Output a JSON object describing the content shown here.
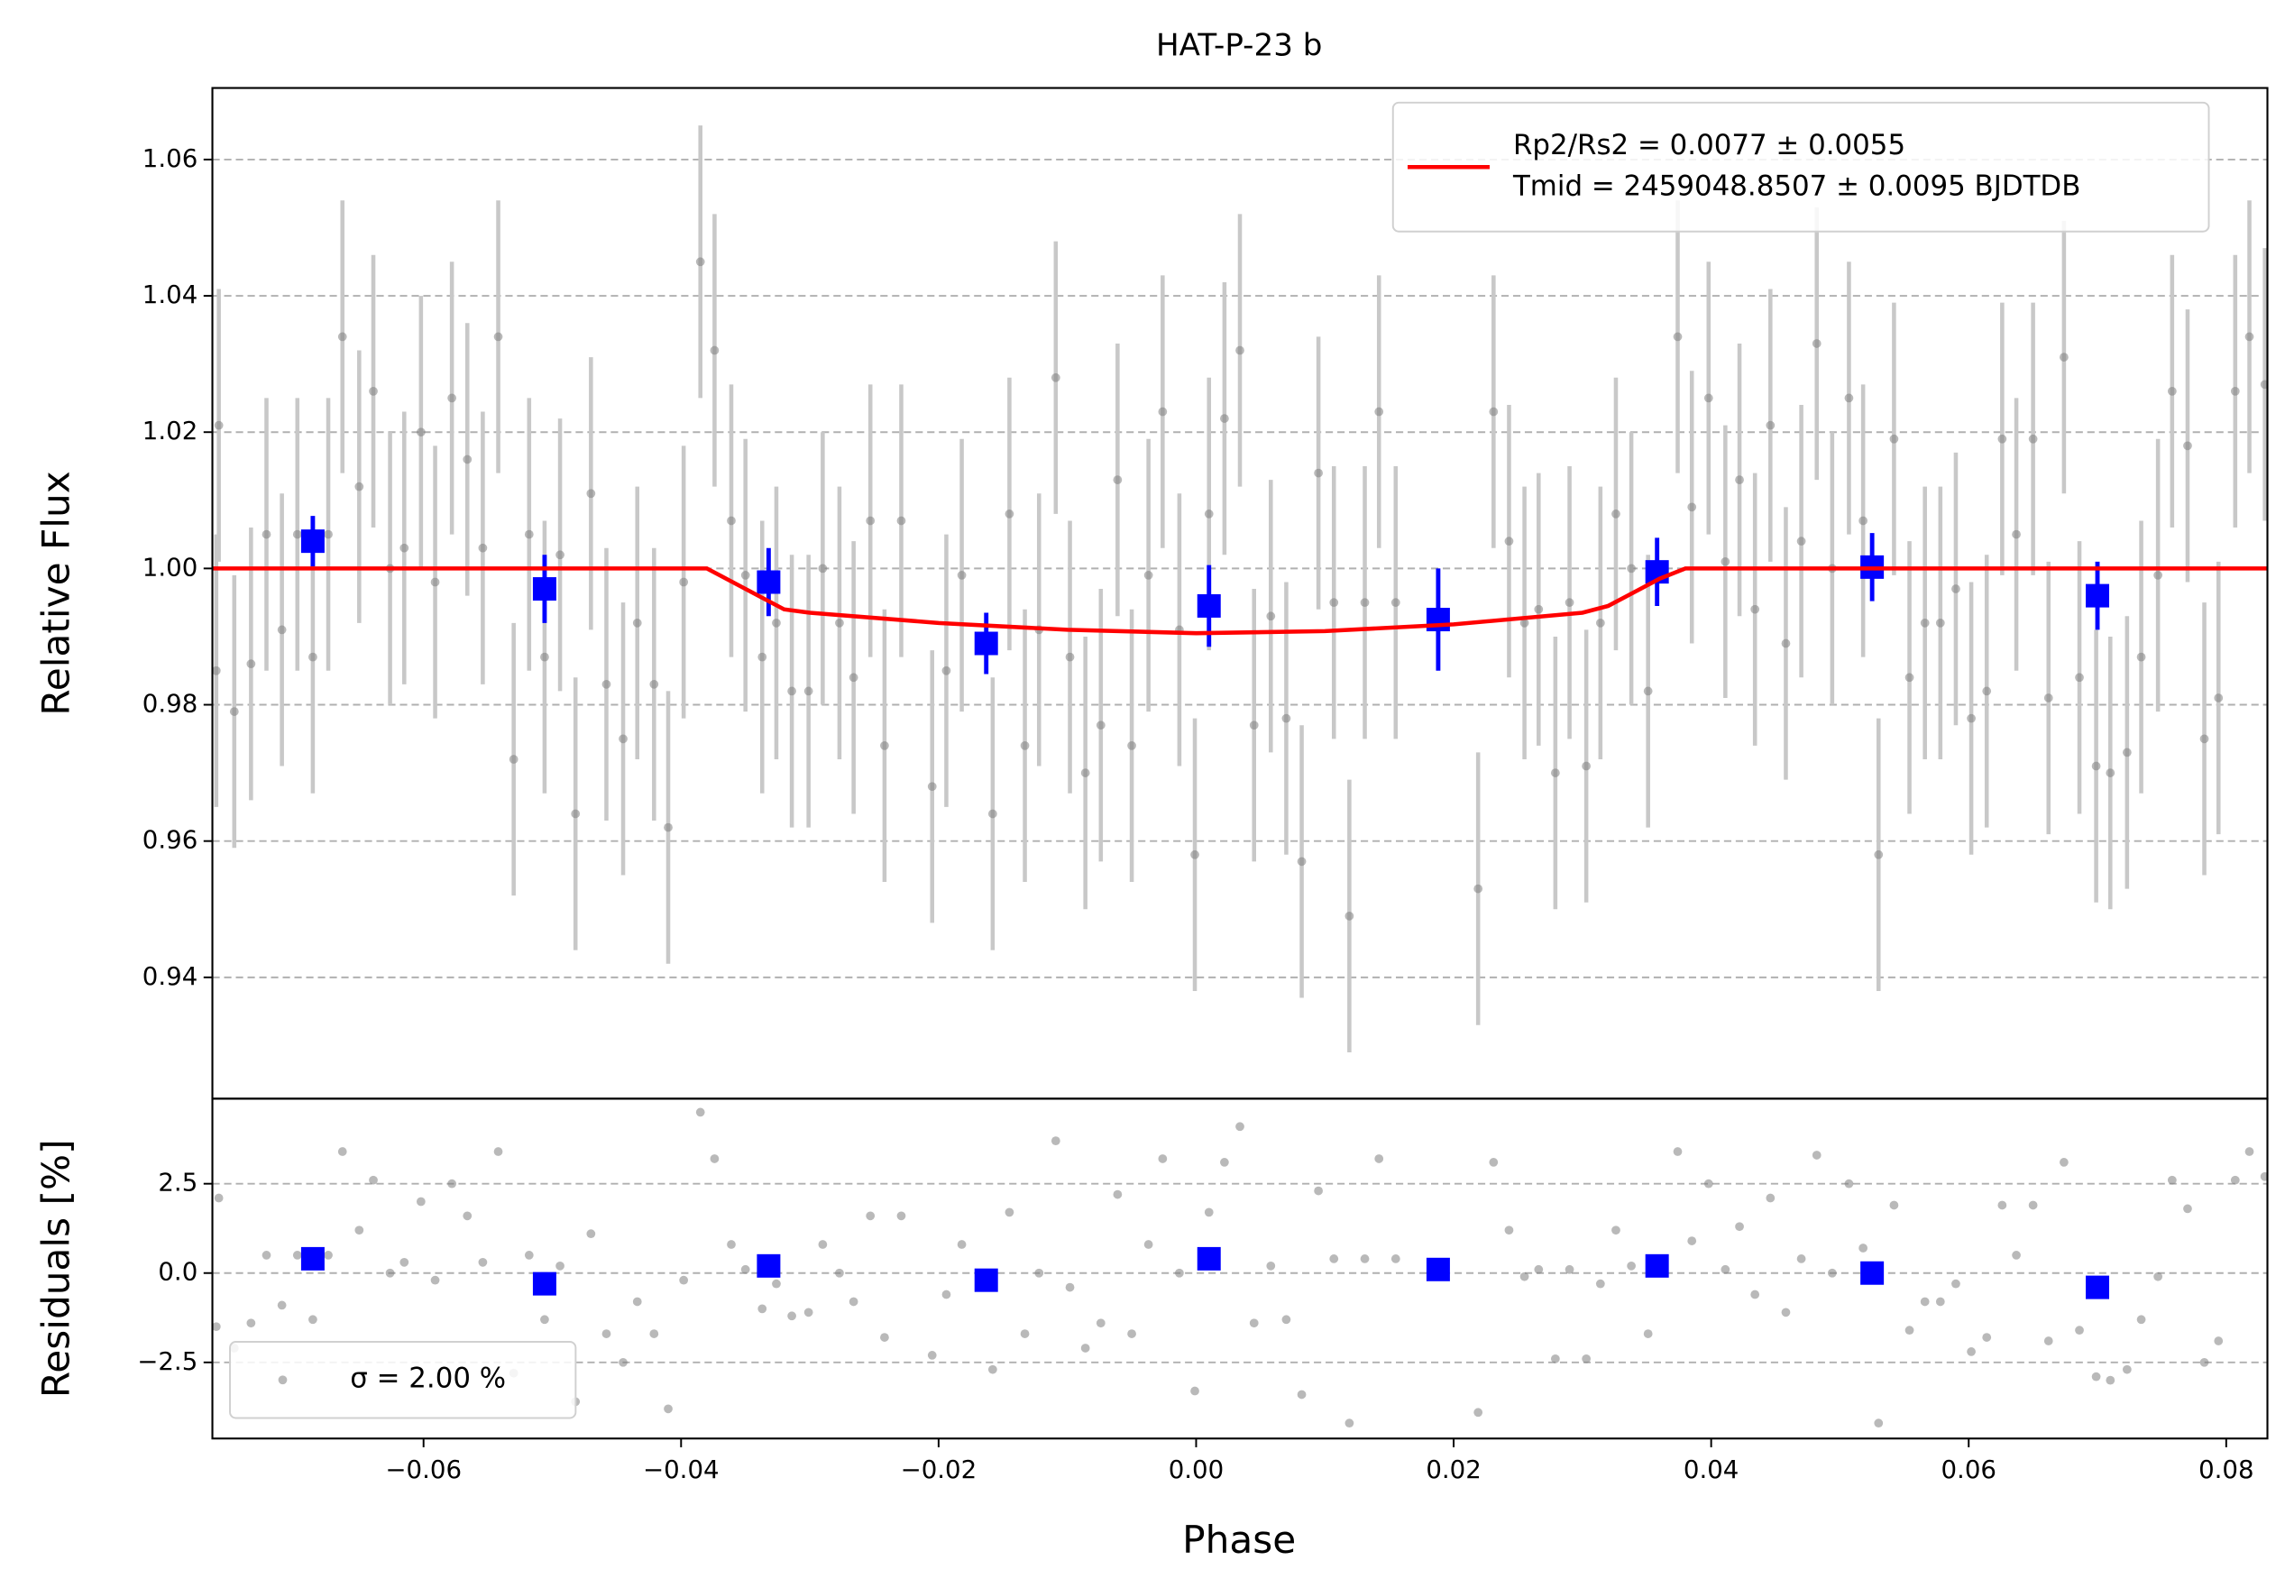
{
  "chart_data": [
    {
      "type": "scatter",
      "title": "HAT-P-23 b",
      "ylabel": "Relative Flux",
      "xlim": [
        -0.0764,
        0.0832
      ],
      "ylim": [
        0.9222,
        1.0705
      ],
      "yticks": [
        0.94,
        0.96,
        0.98,
        {
          "value": 1.0,
          "label": "1.00"
        },
        1.02,
        1.04,
        1.06
      ],
      "grid": true,
      "legend": {
        "loc": "upper right",
        "labels": [
          "Rp2/Rs2 = 0.0077 ± 0.0055",
          "Tmid = 2459048.8507 ± 0.0095 BJDTDB"
        ]
      },
      "series": [
        {
          "style": "errorbar",
          "color": "#808080",
          "error_color": "#c8c8c8",
          "error": 0.02,
          "x": [
            -0.0761,
            -0.0759,
            -0.0747,
            -0.0734,
            -0.0722,
            -0.071,
            -0.0698,
            -0.0686,
            -0.0674,
            -0.0663,
            -0.065,
            -0.0639,
            -0.0626,
            -0.0615,
            -0.0602,
            -0.0591,
            -0.0578,
            -0.0566,
            -0.0554,
            -0.0542,
            -0.053,
            -0.0518,
            -0.0506,
            -0.0494,
            -0.0482,
            -0.047,
            -0.0458,
            -0.0445,
            -0.0434,
            -0.0421,
            -0.041,
            -0.0398,
            -0.0385,
            -0.0374,
            -0.0361,
            -0.035,
            -0.0337,
            -0.0326,
            -0.0314,
            -0.0301,
            -0.029,
            -0.0277,
            -0.0266,
            -0.0253,
            -0.0242,
            -0.0229,
            -0.0205,
            -0.0194,
            -0.0182,
            -0.0158,
            -0.0145,
            -0.0133,
            -0.0122,
            -0.0109,
            -0.0098,
            -0.0086,
            -0.0074,
            -0.0061,
            -0.005,
            -0.0037,
            -0.0026,
            -0.0013,
            -0.0001,
            0.001,
            0.0022,
            0.0034,
            0.0045,
            0.0058,
            0.007,
            0.0082,
            0.0095,
            0.0107,
            0.0119,
            0.0131,
            0.0142,
            0.0155,
            0.0219,
            0.0231,
            0.0243,
            0.0255,
            0.0266,
            0.0279,
            0.029,
            0.0303,
            0.0314,
            0.0326,
            0.0338,
            0.0351,
            0.0374,
            0.0385,
            0.0398,
            0.0411,
            0.0422,
            0.0434,
            0.0446,
            0.0458,
            0.047,
            0.0482,
            0.0494,
            0.0507,
            0.0518,
            0.053,
            0.0542,
            0.0554,
            0.0566,
            0.0578,
            0.059,
            0.0602,
            0.0614,
            0.0626,
            0.0637,
            0.065,
            0.0662,
            0.0674,
            0.0686,
            0.0699,
            0.071,
            0.0723,
            0.0734,
            0.0747,
            0.0758,
            0.077,
            0.0783,
            0.0794,
            0.0807,
            0.0818,
            0.083
          ],
          "values": [
            0.985,
            1.021,
            0.979,
            0.986,
            1.005,
            0.991,
            1.005,
            0.987,
            1.005,
            1.034,
            1.012,
            1.026,
            1.0,
            1.003,
            1.02,
            0.998,
            1.025,
            1.016,
            1.003,
            1.034,
            0.972,
            1.005,
            0.987,
            1.002,
            0.964,
            1.011,
            0.983,
            0.975,
            0.992,
            0.983,
            0.962,
            0.998,
            1.045,
            1.032,
            1.007,
            0.999,
            0.987,
            0.992,
            0.982,
            0.982,
            1.0,
            0.992,
            0.984,
            1.007,
            0.974,
            1.007,
            0.968,
            0.985,
            0.999,
            0.964,
            1.008,
            0.974,
            0.991,
            1.028,
            0.987,
            0.97,
            0.977,
            1.013,
            0.974,
            0.999,
            1.023,
            0.991,
            0.958,
            1.008,
            1.022,
            1.032,
            0.977,
            0.993,
            0.978,
            0.957,
            1.014,
            0.995,
            0.949,
            0.995,
            1.023,
            0.995,
            0.953,
            1.023,
            1.004,
            0.992,
            0.994,
            0.97,
            0.995,
            0.971,
            0.992,
            1.008,
            1.0,
            0.982,
            1.034,
            1.009,
            1.025,
            1.001,
            1.013,
            0.994,
            1.021,
            0.989,
            1.004,
            1.033,
            1.0,
            1.025,
            1.007,
            0.958,
            1.019,
            0.984,
            0.992,
            0.992,
            0.997,
            0.978,
            0.982,
            1.019,
            1.005,
            1.019,
            0.981,
            1.031,
            0.984,
            0.971,
            0.97,
            0.973,
            0.987,
            0.999,
            1.026,
            1.018,
            0.975,
            0.981,
            1.026,
            1.034,
            1.027
          ]
        },
        {
          "style": "errorbar",
          "color": "#0000ff",
          "marker": "square",
          "x": [
            -0.0686,
            -0.0506,
            -0.0332,
            -0.0163,
            0.001,
            0.0188,
            0.0358,
            0.0525,
            0.07
          ],
          "values": [
            1.004,
            0.997,
            0.998,
            0.989,
            0.9945,
            0.9925,
            0.9995,
            1.0002,
            0.996
          ],
          "errors": [
            0.0037,
            0.005,
            0.005,
            0.0045,
            0.006,
            0.0075,
            0.005,
            0.005,
            0.005
          ]
        },
        {
          "style": "line",
          "color": "#ff0000",
          "x": [
            -0.0764,
            -0.038,
            -0.036,
            -0.034,
            -0.032,
            -0.03,
            -0.02,
            -0.01,
            0.0,
            0.01,
            0.02,
            0.03,
            0.032,
            0.034,
            0.036,
            0.038,
            0.0832
          ],
          "values": [
            1.0,
            1.0,
            0.998,
            0.996,
            0.994,
            0.9935,
            0.992,
            0.991,
            0.9905,
            0.9908,
            0.9918,
            0.9935,
            0.9945,
            0.9965,
            0.9985,
            1.0,
            1.0
          ]
        }
      ]
    },
    {
      "type": "scatter",
      "xlabel": "Phase",
      "ylabel": "Residuals [%]",
      "xlim": [
        -0.0764,
        0.0832
      ],
      "ylim": [
        -4.63,
        4.88
      ],
      "xticks": [
        {
          "value": -0.06,
          "label": "−0.06"
        },
        {
          "value": -0.04,
          "label": "−0.04"
        },
        {
          "value": -0.02,
          "label": "−0.02"
        },
        {
          "value": 0,
          "label": "0.00"
        },
        0.02,
        0.04,
        0.06,
        0.08
      ],
      "yticks": [
        {
          "value": -2.5,
          "label": "−2.5"
        },
        {
          "value": 0,
          "label": "0.0"
        },
        2.5
      ],
      "grid": true,
      "legend": {
        "loc": "lower left",
        "labels": [
          "σ = 2.00 %"
        ]
      },
      "series": [
        {
          "style": "points",
          "color": "#808080",
          "x": [
            -0.0761,
            -0.0759,
            -0.0747,
            -0.0734,
            -0.0722,
            -0.071,
            -0.0698,
            -0.0686,
            -0.0674,
            -0.0663,
            -0.065,
            -0.0639,
            -0.0626,
            -0.0615,
            -0.0602,
            -0.0591,
            -0.0578,
            -0.0566,
            -0.0554,
            -0.0542,
            -0.053,
            -0.0518,
            -0.0506,
            -0.0494,
            -0.0482,
            -0.047,
            -0.0458,
            -0.0445,
            -0.0434,
            -0.0421,
            -0.041,
            -0.0398,
            -0.0385,
            -0.0374,
            -0.0361,
            -0.035,
            -0.0337,
            -0.0326,
            -0.0314,
            -0.0301,
            -0.029,
            -0.0277,
            -0.0266,
            -0.0253,
            -0.0242,
            -0.0229,
            -0.0205,
            -0.0194,
            -0.0182,
            -0.0158,
            -0.0145,
            -0.0133,
            -0.0122,
            -0.0109,
            -0.0098,
            -0.0086,
            -0.0074,
            -0.0061,
            -0.005,
            -0.0037,
            -0.0026,
            -0.0013,
            -0.0001,
            0.001,
            0.0022,
            0.0034,
            0.0045,
            0.0058,
            0.007,
            0.0082,
            0.0095,
            0.0107,
            0.0119,
            0.0131,
            0.0142,
            0.0155,
            0.0219,
            0.0231,
            0.0243,
            0.0255,
            0.0266,
            0.0279,
            0.029,
            0.0303,
            0.0314,
            0.0326,
            0.0338,
            0.0351,
            0.0374,
            0.0385,
            0.0398,
            0.0411,
            0.0422,
            0.0434,
            0.0446,
            0.0458,
            0.047,
            0.0482,
            0.0494,
            0.0507,
            0.0518,
            0.053,
            0.0542,
            0.0554,
            0.0566,
            0.0578,
            0.059,
            0.0602,
            0.0614,
            0.0626,
            0.0637,
            0.065,
            0.0662,
            0.0674,
            0.0686,
            0.0699,
            0.071,
            0.0723,
            0.0734,
            0.0747,
            0.0758,
            0.077,
            0.0783,
            0.0794,
            0.0807,
            0.0818,
            0.083
          ],
          "values": [
            -1.5,
            2.1,
            -2.1,
            -1.4,
            0.5,
            -0.9,
            0.5,
            -1.3,
            0.5,
            3.4,
            1.2,
            2.6,
            0.0,
            0.3,
            2.0,
            -0.2,
            2.5,
            1.6,
            0.3,
            3.4,
            -2.8,
            0.5,
            -1.3,
            0.2,
            -3.6,
            1.1,
            -1.7,
            -2.5,
            -0.8,
            -1.7,
            -3.8,
            -0.2,
            4.5,
            3.2,
            0.8,
            0.1,
            -1.0,
            -0.3,
            -1.2,
            -1.1,
            0.8,
            0.0,
            -0.8,
            1.6,
            -1.8,
            1.6,
            -2.3,
            -0.6,
            0.8,
            -2.7,
            1.7,
            -1.7,
            0.0,
            3.7,
            -0.4,
            -2.1,
            -1.4,
            2.2,
            -1.7,
            0.8,
            3.2,
            0.0,
            -3.3,
            1.7,
            3.1,
            4.1,
            -1.4,
            0.2,
            -1.3,
            -3.4,
            2.3,
            0.4,
            -4.2,
            0.4,
            3.2,
            0.4,
            -3.9,
            3.1,
            1.2,
            -0.1,
            0.1,
            -2.4,
            0.1,
            -2.4,
            -0.3,
            1.2,
            0.2,
            -1.7,
            3.4,
            0.9,
            2.5,
            0.1,
            1.3,
            -0.6,
            2.1,
            -1.1,
            0.4,
            3.3,
            0.0,
            2.5,
            0.7,
            -4.2,
            1.9,
            -1.6,
            -0.8,
            -0.8,
            -0.3,
            -2.2,
            -1.8,
            1.9,
            0.5,
            1.9,
            -1.9,
            3.1,
            -1.6,
            -2.9,
            -3.0,
            -2.7,
            -1.3,
            -0.1,
            2.6,
            1.8,
            -2.5,
            -1.9,
            2.6,
            3.4,
            2.7
          ]
        },
        {
          "style": "points",
          "color": "#0000ff",
          "marker": "square",
          "x": [
            -0.0686,
            -0.0506,
            -0.0332,
            -0.0163,
            0.001,
            0.0188,
            0.0358,
            0.0525,
            0.07
          ],
          "values": [
            0.4,
            -0.3,
            0.2,
            -0.2,
            0.4,
            0.1,
            0.2,
            0.0,
            -0.4
          ]
        }
      ]
    }
  ]
}
